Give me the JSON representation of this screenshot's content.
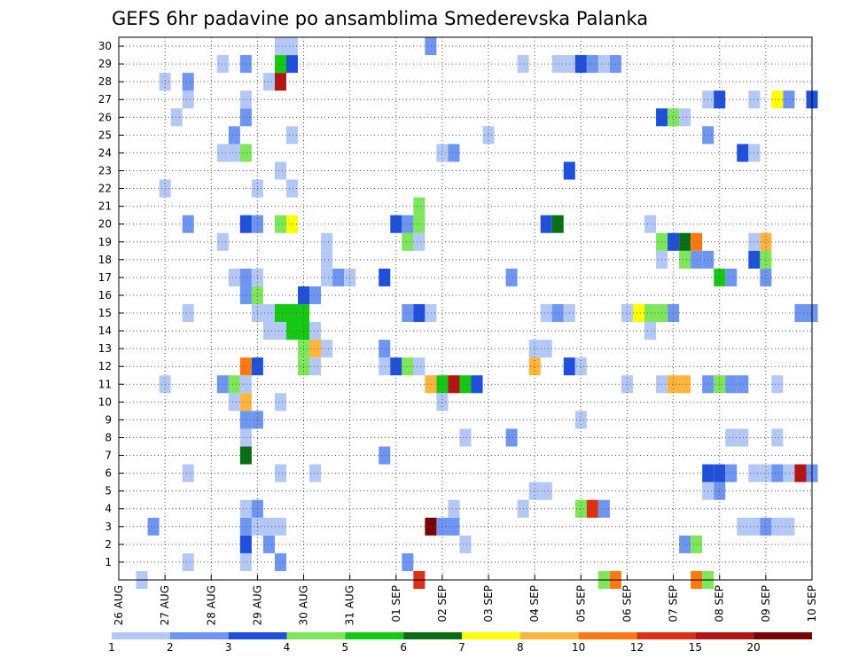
{
  "chart_data": {
    "type": "heatmap",
    "title": "GEFS 6hr padavine po ansamblima Smederevska Palanka",
    "x_tick_labels": [
      "26 AUG",
      "27 AUG",
      "28 AUG",
      "29 AUG",
      "30 AUG",
      "31 AUG",
      "01 SEP",
      "02 SEP",
      "03 SEP",
      "04 SEP",
      "05 SEP",
      "06 SEP",
      "07 SEP",
      "08 SEP",
      "09 SEP",
      "10 SEP"
    ],
    "y_tick_labels": [
      "1",
      "2",
      "3",
      "4",
      "5",
      "6",
      "7",
      "8",
      "9",
      "10",
      "11",
      "12",
      "13",
      "14",
      "15",
      "16",
      "17",
      "18",
      "19",
      "20",
      "21",
      "22",
      "23",
      "24",
      "25",
      "26",
      "27",
      "28",
      "29",
      "30"
    ],
    "x_range_days": [
      0,
      15
    ],
    "y_range": [
      0,
      30
    ],
    "grid": true,
    "colorbar_labels": [
      "1",
      "2",
      "3",
      "4",
      "5",
      "6",
      "7",
      "8",
      "10",
      "12",
      "15",
      "20"
    ],
    "colorbar_colors": [
      "#b4c8f5",
      "#6e96f0",
      "#1e50dc",
      "#7ee65a",
      "#14c814",
      "#0a6e14",
      "#ffff00",
      "#ffb43c",
      "#ff7814",
      "#dc3214",
      "#b41414",
      "#780000"
    ],
    "cells": [
      [
        0.5,
        0,
        0
      ],
      [
        6.5,
        0,
        9
      ],
      [
        10.75,
        0,
        8
      ],
      [
        10.5,
        0,
        3
      ],
      [
        12.5,
        0,
        8
      ],
      [
        12.75,
        0,
        3
      ],
      [
        1.5,
        1,
        0
      ],
      [
        2.75,
        1,
        0
      ],
      [
        3.5,
        1,
        1
      ],
      [
        6.25,
        1,
        1
      ],
      [
        2.75,
        2,
        2
      ],
      [
        3.25,
        2,
        1
      ],
      [
        7.5,
        2,
        0
      ],
      [
        12.25,
        2,
        1
      ],
      [
        12.5,
        2,
        3
      ],
      [
        0.75,
        3,
        1
      ],
      [
        2.75,
        3,
        1
      ],
      [
        3.0,
        3,
        0
      ],
      [
        3.25,
        3,
        0
      ],
      [
        3.5,
        3,
        0
      ],
      [
        6.75,
        3,
        11
      ],
      [
        7.0,
        3,
        1
      ],
      [
        7.25,
        3,
        1
      ],
      [
        13.5,
        3,
        0
      ],
      [
        13.75,
        3,
        0
      ],
      [
        14.0,
        3,
        1
      ],
      [
        14.25,
        3,
        0
      ],
      [
        14.5,
        3,
        0
      ],
      [
        2.75,
        4,
        0
      ],
      [
        3.0,
        4,
        1
      ],
      [
        7.25,
        4,
        0
      ],
      [
        8.75,
        4,
        0
      ],
      [
        10.0,
        4,
        3
      ],
      [
        10.25,
        4,
        9
      ],
      [
        10.5,
        4,
        1
      ],
      [
        9.0,
        5,
        0
      ],
      [
        9.25,
        5,
        0
      ],
      [
        12.75,
        5,
        0
      ],
      [
        13.0,
        5,
        1
      ],
      [
        1.5,
        6,
        0
      ],
      [
        3.5,
        6,
        0
      ],
      [
        4.25,
        6,
        0
      ],
      [
        12.75,
        6,
        2
      ],
      [
        13.0,
        6,
        2
      ],
      [
        13.25,
        6,
        1
      ],
      [
        13.75,
        6,
        0
      ],
      [
        14.0,
        6,
        0
      ],
      [
        14.25,
        6,
        1
      ],
      [
        14.5,
        6,
        0
      ],
      [
        14.75,
        6,
        10
      ],
      [
        15.0,
        6,
        1
      ],
      [
        2.75,
        7,
        5
      ],
      [
        5.75,
        7,
        1
      ],
      [
        2.75,
        8,
        0
      ],
      [
        7.5,
        8,
        0
      ],
      [
        8.5,
        8,
        1
      ],
      [
        13.25,
        8,
        0
      ],
      [
        13.5,
        8,
        0
      ],
      [
        14.25,
        8,
        0
      ],
      [
        2.75,
        9,
        1
      ],
      [
        3.0,
        9,
        1
      ],
      [
        10.0,
        9,
        0
      ],
      [
        2.5,
        10,
        0
      ],
      [
        2.75,
        10,
        7
      ],
      [
        3.5,
        10,
        0
      ],
      [
        7.0,
        10,
        0
      ],
      [
        1.0,
        11,
        0
      ],
      [
        2.25,
        11,
        1
      ],
      [
        2.5,
        11,
        3
      ],
      [
        2.75,
        11,
        0
      ],
      [
        6.75,
        11,
        7
      ],
      [
        7.0,
        11,
        4
      ],
      [
        7.25,
        11,
        10
      ],
      [
        7.5,
        11,
        4
      ],
      [
        7.75,
        11,
        2
      ],
      [
        11.0,
        11,
        0
      ],
      [
        11.75,
        11,
        0
      ],
      [
        12.0,
        11,
        7
      ],
      [
        12.25,
        11,
        7
      ],
      [
        12.75,
        11,
        1
      ],
      [
        13.0,
        11,
        3
      ],
      [
        13.25,
        11,
        1
      ],
      [
        13.5,
        11,
        1
      ],
      [
        14.25,
        11,
        0
      ],
      [
        2.75,
        12,
        8
      ],
      [
        3.0,
        12,
        2
      ],
      [
        4.0,
        12,
        3
      ],
      [
        4.25,
        12,
        0
      ],
      [
        5.75,
        12,
        0
      ],
      [
        6.0,
        12,
        2
      ],
      [
        6.25,
        12,
        3
      ],
      [
        6.5,
        12,
        0
      ],
      [
        9.0,
        12,
        7
      ],
      [
        9.75,
        12,
        2
      ],
      [
        10.0,
        12,
        0
      ],
      [
        4.0,
        13,
        3
      ],
      [
        4.25,
        13,
        7
      ],
      [
        4.5,
        13,
        0
      ],
      [
        5.75,
        13,
        1
      ],
      [
        9.0,
        13,
        0
      ],
      [
        9.25,
        13,
        0
      ],
      [
        3.25,
        14,
        0
      ],
      [
        3.5,
        14,
        0
      ],
      [
        3.75,
        14,
        4
      ],
      [
        4.0,
        14,
        4
      ],
      [
        4.25,
        14,
        0
      ],
      [
        11.5,
        14,
        0
      ],
      [
        1.5,
        15,
        0
      ],
      [
        3.0,
        15,
        0
      ],
      [
        3.25,
        15,
        0
      ],
      [
        3.5,
        15,
        4
      ],
      [
        3.75,
        15,
        4
      ],
      [
        4.0,
        15,
        4
      ],
      [
        6.25,
        15,
        1
      ],
      [
        6.5,
        15,
        2
      ],
      [
        6.75,
        15,
        0
      ],
      [
        9.25,
        15,
        0
      ],
      [
        9.5,
        15,
        1
      ],
      [
        9.75,
        15,
        0
      ],
      [
        11.0,
        15,
        0
      ],
      [
        11.25,
        15,
        6
      ],
      [
        11.5,
        15,
        3
      ],
      [
        11.75,
        15,
        3
      ],
      [
        12.0,
        15,
        1
      ],
      [
        14.75,
        15,
        1
      ],
      [
        15.0,
        15,
        1
      ],
      [
        2.75,
        16,
        1
      ],
      [
        3.0,
        16,
        3
      ],
      [
        4.0,
        16,
        2
      ],
      [
        4.25,
        16,
        1
      ],
      [
        2.5,
        17,
        0
      ],
      [
        2.75,
        17,
        1
      ],
      [
        3.0,
        17,
        0
      ],
      [
        4.5,
        17,
        0
      ],
      [
        4.75,
        17,
        1
      ],
      [
        5.0,
        17,
        0
      ],
      [
        5.75,
        17,
        2
      ],
      [
        8.5,
        17,
        1
      ],
      [
        13.0,
        17,
        4
      ],
      [
        13.25,
        17,
        1
      ],
      [
        14.0,
        17,
        1
      ],
      [
        4.5,
        18,
        0
      ],
      [
        11.75,
        18,
        0
      ],
      [
        12.25,
        18,
        3
      ],
      [
        12.5,
        18,
        1
      ],
      [
        12.75,
        18,
        1
      ],
      [
        13.75,
        18,
        2
      ],
      [
        14.0,
        18,
        3
      ],
      [
        2.25,
        19,
        0
      ],
      [
        4.5,
        19,
        0
      ],
      [
        6.25,
        19,
        3
      ],
      [
        6.5,
        19,
        0
      ],
      [
        11.75,
        19,
        3
      ],
      [
        12.0,
        19,
        2
      ],
      [
        12.25,
        19,
        5
      ],
      [
        12.5,
        19,
        8
      ],
      [
        13.75,
        19,
        0
      ],
      [
        14.0,
        19,
        7
      ],
      [
        1.5,
        20,
        1
      ],
      [
        2.75,
        20,
        2
      ],
      [
        3.0,
        20,
        1
      ],
      [
        3.5,
        20,
        3
      ],
      [
        3.75,
        20,
        6
      ],
      [
        6.0,
        20,
        2
      ],
      [
        6.25,
        20,
        1
      ],
      [
        6.5,
        20,
        3
      ],
      [
        9.25,
        20,
        2
      ],
      [
        9.5,
        20,
        5
      ],
      [
        11.5,
        20,
        0
      ],
      [
        6.5,
        21,
        3
      ],
      [
        1.0,
        22,
        0
      ],
      [
        3.0,
        22,
        0
      ],
      [
        3.75,
        22,
        0
      ],
      [
        3.5,
        23,
        0
      ],
      [
        9.75,
        23,
        2
      ],
      [
        2.25,
        24,
        0
      ],
      [
        2.5,
        24,
        0
      ],
      [
        2.75,
        24,
        3
      ],
      [
        7.0,
        24,
        0
      ],
      [
        7.25,
        24,
        1
      ],
      [
        13.5,
        24,
        2
      ],
      [
        13.75,
        24,
        0
      ],
      [
        2.5,
        25,
        1
      ],
      [
        3.75,
        25,
        0
      ],
      [
        8.0,
        25,
        0
      ],
      [
        12.75,
        25,
        1
      ],
      [
        1.25,
        26,
        0
      ],
      [
        2.75,
        26,
        1
      ],
      [
        11.75,
        26,
        2
      ],
      [
        12.0,
        26,
        3
      ],
      [
        12.25,
        26,
        0
      ],
      [
        1.5,
        27,
        0
      ],
      [
        2.75,
        27,
        0
      ],
      [
        12.75,
        27,
        0
      ],
      [
        13.0,
        27,
        2
      ],
      [
        13.75,
        27,
        0
      ],
      [
        14.25,
        27,
        6
      ],
      [
        14.5,
        27,
        1
      ],
      [
        15.0,
        27,
        2
      ],
      [
        1.0,
        28,
        0
      ],
      [
        1.5,
        28,
        1
      ],
      [
        3.25,
        28,
        0
      ],
      [
        3.5,
        28,
        10
      ],
      [
        2.25,
        29,
        0
      ],
      [
        2.75,
        29,
        1
      ],
      [
        3.5,
        29,
        4
      ],
      [
        3.75,
        29,
        2
      ],
      [
        8.75,
        29,
        0
      ],
      [
        9.5,
        29,
        0
      ],
      [
        9.75,
        29,
        0
      ],
      [
        10.0,
        29,
        2
      ],
      [
        10.25,
        29,
        1
      ],
      [
        10.5,
        29,
        0
      ],
      [
        10.75,
        29,
        1
      ],
      [
        3.5,
        30,
        0
      ],
      [
        3.75,
        30,
        0
      ],
      [
        6.75,
        30,
        1
      ]
    ]
  }
}
